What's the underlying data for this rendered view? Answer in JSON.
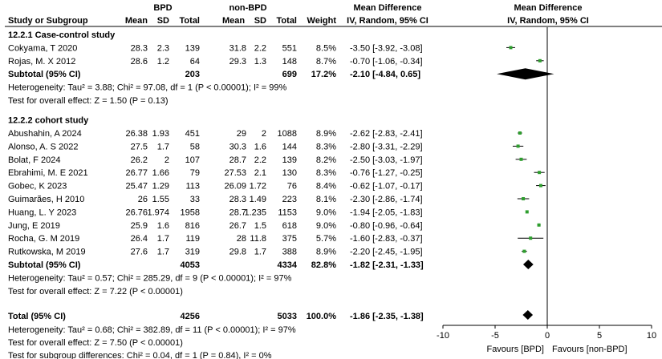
{
  "chart_data": {
    "type": "forest",
    "header": {
      "group1": "BPD",
      "group2": "non-BPD",
      "effect_title": "Mean Difference",
      "effect_method": "IV, Random, 95% CI",
      "plot_title": "Mean Difference",
      "plot_method": "IV, Random, 95% CI",
      "col_study": "Study or Subgroup",
      "col_mean1": "Mean",
      "col_sd1": "SD",
      "col_total1": "Total",
      "col_mean2": "Mean",
      "col_sd2": "SD",
      "col_total2": "Total",
      "col_weight": "Weight"
    },
    "subgroups": [
      {
        "title": "12.2.1 Case-control study",
        "studies": [
          {
            "name": "Cokyama, T 2020",
            "mean1": "28.3",
            "sd1": "2.3",
            "n1": "139",
            "mean2": "31.8",
            "sd2": "2.2",
            "n2": "551",
            "weight": "8.5%",
            "ci_text": "-3.50 [-3.92, -3.08]",
            "md": -3.5,
            "lo": -3.92,
            "hi": -3.08
          },
          {
            "name": "Rojas, M. X 2012",
            "mean1": "28.6",
            "sd1": "1.2",
            "n1": "64",
            "mean2": "29.3",
            "sd2": "1.3",
            "n2": "148",
            "weight": "8.7%",
            "ci_text": "-0.70 [-1.06, -0.34]",
            "md": -0.7,
            "lo": -1.06,
            "hi": -0.34
          }
        ],
        "subtotal": {
          "label": "Subtotal (95% CI)",
          "n1": "203",
          "n2": "699",
          "weight": "17.2%",
          "ci_text": "-2.10 [-4.84, 0.65]",
          "md": -2.1,
          "lo": -4.84,
          "hi": 0.65
        },
        "heterogeneity": "Heterogeneity: Tau² = 3.88; Chi² = 97.08, df = 1 (P < 0.00001); I² = 99%",
        "overall_effect": "Test for overall effect: Z = 1.50 (P = 0.13)"
      },
      {
        "title": "12.2.2 cohort study",
        "studies": [
          {
            "name": "Abushahin, A 2024",
            "mean1": "26.38",
            "sd1": "1.93",
            "n1": "451",
            "mean2": "29",
            "sd2": "2",
            "n2": "1088",
            "weight": "8.9%",
            "ci_text": "-2.62 [-2.83, -2.41]",
            "md": -2.62,
            "lo": -2.83,
            "hi": -2.41
          },
          {
            "name": "Alonso, A. S 2022",
            "mean1": "27.5",
            "sd1": "1.7",
            "n1": "58",
            "mean2": "30.3",
            "sd2": "1.6",
            "n2": "144",
            "weight": "8.3%",
            "ci_text": "-2.80 [-3.31, -2.29]",
            "md": -2.8,
            "lo": -3.31,
            "hi": -2.29
          },
          {
            "name": "Bolat, F 2024",
            "mean1": "26.2",
            "sd1": "2",
            "n1": "107",
            "mean2": "28.7",
            "sd2": "2.2",
            "n2": "139",
            "weight": "8.2%",
            "ci_text": "-2.50 [-3.03, -1.97]",
            "md": -2.5,
            "lo": -3.03,
            "hi": -1.97
          },
          {
            "name": "Ebrahimi, M. E 2021",
            "mean1": "26.77",
            "sd1": "1.66",
            "n1": "79",
            "mean2": "27.53",
            "sd2": "2.1",
            "n2": "130",
            "weight": "8.3%",
            "ci_text": "-0.76 [-1.27, -0.25]",
            "md": -0.76,
            "lo": -1.27,
            "hi": -0.25
          },
          {
            "name": "Gobec, K 2023",
            "mean1": "25.47",
            "sd1": "1.29",
            "n1": "113",
            "mean2": "26.09",
            "sd2": "1.72",
            "n2": "76",
            "weight": "8.4%",
            "ci_text": "-0.62 [-1.07, -0.17]",
            "md": -0.62,
            "lo": -1.07,
            "hi": -0.17
          },
          {
            "name": "Guimarães, H 2010",
            "mean1": "26",
            "sd1": "1.55",
            "n1": "33",
            "mean2": "28.3",
            "sd2": "1.49",
            "n2": "223",
            "weight": "8.1%",
            "ci_text": "-2.30 [-2.86, -1.74]",
            "md": -2.3,
            "lo": -2.86,
            "hi": -1.74
          },
          {
            "name": "Huang, L. Y 2023",
            "mean1": "26.76",
            "sd1": "1.974",
            "n1": "1958",
            "mean2": "28.7",
            "sd2": "1.235",
            "n2": "1153",
            "weight": "9.0%",
            "ci_text": "-1.94 [-2.05, -1.83]",
            "md": -1.94,
            "lo": -2.05,
            "hi": -1.83
          },
          {
            "name": "Jung, E 2019",
            "mean1": "25.9",
            "sd1": "1.6",
            "n1": "816",
            "mean2": "26.7",
            "sd2": "1.5",
            "n2": "618",
            "weight": "9.0%",
            "ci_text": "-0.80 [-0.96, -0.64]",
            "md": -0.8,
            "lo": -0.96,
            "hi": -0.64
          },
          {
            "name": "Rocha, G. M 2019",
            "mean1": "26.4",
            "sd1": "1.7",
            "n1": "119",
            "mean2": "28",
            "sd2": "11.8",
            "n2": "375",
            "weight": "5.7%",
            "ci_text": "-1.60 [-2.83, -0.37]",
            "md": -1.6,
            "lo": -2.83,
            "hi": -0.37
          },
          {
            "name": "Rutkowska, M 2019",
            "mean1": "27.6",
            "sd1": "1.7",
            "n1": "319",
            "mean2": "29.8",
            "sd2": "1.7",
            "n2": "388",
            "weight": "8.9%",
            "ci_text": "-2.20 [-2.45, -1.95]",
            "md": -2.2,
            "lo": -2.45,
            "hi": -1.95
          }
        ],
        "subtotal": {
          "label": "Subtotal (95% CI)",
          "n1": "4053",
          "n2": "4334",
          "weight": "82.8%",
          "ci_text": "-1.82 [-2.31, -1.33]",
          "md": -1.82,
          "lo": -2.31,
          "hi": -1.33
        },
        "heterogeneity": "Heterogeneity: Tau² = 0.57; Chi² = 285.29, df = 9 (P < 0.00001); I² = 97%",
        "overall_effect": "Test for overall effect: Z = 7.22 (P < 0.00001)"
      }
    ],
    "total": {
      "label": "Total (95% CI)",
      "n1": "4256",
      "n2": "5033",
      "weight": "100.0%",
      "ci_text": "-1.86 [-2.35, -1.38]",
      "md": -1.86,
      "lo": -2.35,
      "hi": -1.38
    },
    "total_heterogeneity": "Heterogeneity: Tau² = 0.68; Chi² = 382.89, df = 11 (P < 0.00001); I² = 97%",
    "total_overall_effect": "Test for overall effect: Z = 7.50 (P < 0.00001)",
    "subgroup_differences": "Test for subgroup differences: Chi² = 0.04, df = 1 (P = 0.84), I² = 0%",
    "axis": {
      "min": -10,
      "max": 10,
      "ticks": [
        -10,
        -5,
        0,
        5,
        10
      ],
      "tick_labels": [
        "-10",
        "-5",
        "0",
        "5",
        "10"
      ]
    },
    "favours_left": "Favours [BPD]",
    "favours_right": "Favours [non-BPD]",
    "colors": {
      "study_marker": "#2e9e2e",
      "line": "#000000",
      "diamond": "#000000"
    }
  }
}
